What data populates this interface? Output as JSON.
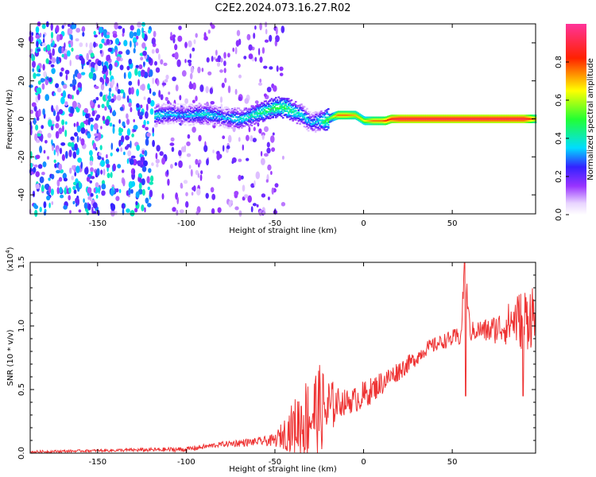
{
  "title": "C2E2.2024.073.16.27.R02",
  "colors": {
    "snr_line": "#ee3333",
    "axis": "#000000",
    "background": "#ffffff"
  },
  "chart_data": [
    {
      "type": "heatmap",
      "xlabel": "Height of straight line (km)",
      "ylabel": "Frequency (Hz)",
      "xlim": [
        -188,
        97
      ],
      "ylim": [
        -50,
        50
      ],
      "x_ticks": [
        -150,
        -100,
        -50,
        0,
        50
      ],
      "y_ticks": [
        -40,
        -20,
        0,
        20,
        40
      ],
      "colorbar": {
        "label": "Normalized spectral amplitude",
        "range": [
          0.0,
          1.0
        ],
        "ticks": [
          "0.0",
          "0.2",
          "0.4",
          "0.6",
          "0.8"
        ],
        "colormap": "white-purple-blue-cyan-green-yellow-red-magenta"
      },
      "ridge": {
        "x": [
          -118,
          -110,
          -100,
          -90,
          -80,
          -70,
          -60,
          -50,
          -45,
          -40,
          -35,
          -30,
          -25,
          -22,
          -18,
          -15,
          -10,
          -5,
          0,
          5,
          10,
          12,
          15,
          20,
          30,
          50,
          70,
          90,
          94,
          97
        ],
        "y": [
          2,
          3,
          2,
          3,
          1,
          0,
          3,
          6,
          6,
          4,
          2,
          -2,
          -1,
          -1,
          1,
          2,
          2,
          2,
          -1,
          -1,
          -1,
          -1,
          0,
          0,
          0,
          0,
          0,
          0,
          0,
          0
        ],
        "amplitude": [
          0.4,
          0.35,
          0.35,
          0.4,
          0.35,
          0.4,
          0.45,
          0.5,
          0.5,
          0.45,
          0.4,
          0.35,
          0.4,
          0.5,
          0.6,
          0.75,
          0.75,
          0.7,
          0.65,
          0.75,
          0.75,
          0.8,
          0.85,
          0.9,
          0.9,
          0.9,
          0.9,
          0.9,
          0.8,
          0.7
        ]
      },
      "noise_region": {
        "x_range": [
          -188,
          -45
        ],
        "dense_until": -118,
        "amplitude_range": [
          0.0,
          0.35
        ]
      }
    },
    {
      "type": "line",
      "xlabel": "Height of straight line (km)",
      "ylabel": "SNR (10 * v/v)",
      "y_multiplier": "(x10",
      "y_multiplier_exp": "4",
      "y_multiplier_close": ")",
      "xlim": [
        -188,
        97
      ],
      "ylim": [
        0,
        1.5
      ],
      "x_ticks": [
        -150,
        -100,
        -50,
        0,
        50
      ],
      "y_ticks": [
        "0.0",
        "0.5",
        "1.0",
        "1.5"
      ],
      "series": [
        {
          "x": [
            -188,
            -150,
            -100,
            -90,
            -80,
            -70,
            -60,
            -50,
            -45,
            -40,
            -35,
            -30,
            -25,
            -20,
            -15,
            -10,
            -5,
            0,
            5,
            10,
            15,
            20,
            25,
            30,
            35,
            40,
            45,
            50,
            55,
            57,
            60,
            65,
            70,
            75,
            80,
            85,
            90,
            95,
            97
          ],
          "y": [
            0.01,
            0.02,
            0.03,
            0.05,
            0.07,
            0.08,
            0.09,
            0.1,
            0.15,
            0.2,
            0.25,
            0.3,
            0.35,
            0.33,
            0.4,
            0.4,
            0.42,
            0.45,
            0.5,
            0.55,
            0.6,
            0.65,
            0.7,
            0.75,
            0.82,
            0.85,
            0.88,
            0.9,
            0.92,
            1.5,
            0.95,
            0.97,
            0.96,
            0.98,
            1.0,
            1.05,
            1.05,
            1.1,
            1.0
          ],
          "noise_amplitude": [
            0.01,
            0.01,
            0.02,
            0.02,
            0.02,
            0.03,
            0.03,
            0.05,
            0.12,
            0.2,
            0.3,
            0.35,
            0.35,
            0.3,
            0.12,
            0.1,
            0.1,
            0.12,
            0.1,
            0.1,
            0.08,
            0.08,
            0.07,
            0.06,
            0.06,
            0.06,
            0.06,
            0.07,
            0.08,
            0.1,
            0.08,
            0.08,
            0.1,
            0.12,
            0.15,
            0.2,
            0.25,
            0.28,
            0.28
          ]
        }
      ]
    }
  ]
}
